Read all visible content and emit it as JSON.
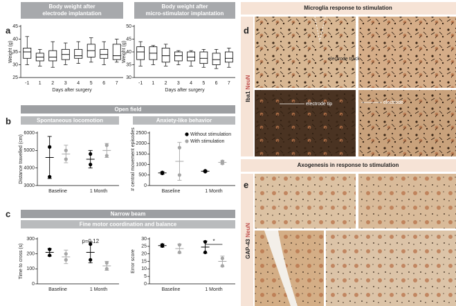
{
  "chart_data": [
    {
      "type": "box",
      "title": [
        "Body weight after",
        "electrode implantation"
      ],
      "ylabel": "Weight (g)",
      "xlabel": "Days after surgery",
      "categories": [
        "-1",
        "1",
        "2",
        "3",
        "4",
        "5",
        "6",
        "7"
      ],
      "ylim": [
        25,
        45
      ],
      "yticks": [
        25,
        30,
        35,
        40,
        45
      ],
      "stats": {
        "min": [
          30,
          29.5,
          29,
          30,
          30.5,
          31,
          30,
          31
        ],
        "q1": [
          32.5,
          31.5,
          31.5,
          32,
          32.5,
          33,
          32.5,
          32
        ],
        "median": [
          35,
          33,
          33,
          34,
          33.5,
          35.5,
          34,
          33.5
        ],
        "q3": [
          36.5,
          34.5,
          35.5,
          36,
          36,
          38,
          36,
          38
        ],
        "max": [
          41,
          36,
          39,
          38.5,
          39,
          40.5,
          39,
          40
        ]
      }
    },
    {
      "type": "box",
      "title": [
        "Body weight after",
        "micro-stimulator implantation"
      ],
      "ylabel": "Weight (g)",
      "xlabel": "Days after surgery",
      "categories": [
        "-1",
        "1",
        "2",
        "3",
        "4",
        "5",
        "6",
        "7"
      ],
      "ylim": [
        30,
        50
      ],
      "yticks": [
        30,
        35,
        40,
        45,
        50
      ],
      "stats": {
        "min": [
          34.5,
          35,
          34.5,
          35,
          34.5,
          34,
          33.5,
          34
        ],
        "q1": [
          37,
          37,
          36,
          36.5,
          36.5,
          35.5,
          35,
          36
        ],
        "median": [
          40,
          39.5,
          38.5,
          38.5,
          38,
          37.5,
          37,
          37.5
        ],
        "q3": [
          42,
          42,
          41.5,
          40,
          40,
          40,
          39.5,
          40
        ],
        "max": [
          44,
          42.5,
          43,
          40.5,
          40.5,
          41,
          41,
          41.5
        ]
      }
    },
    {
      "type": "dot",
      "title": "Spontaneous locomotion",
      "ylabel": "Distance travelled (cm)",
      "categories": [
        "Baseline",
        "1 Month"
      ],
      "ylim": [
        3000,
        6000
      ],
      "yticks": [
        3000,
        4000,
        5000,
        6000
      ],
      "series": [
        {
          "color": "#000000",
          "values": [
            4600,
            4500
          ],
          "errors": [
            1200,
            500
          ],
          "points": [
            [
              5200,
              3500
            ],
            [
              4800,
              4200
            ]
          ]
        },
        {
          "color": "#a6a6a6",
          "values": [
            4800,
            5000
          ],
          "errors": [
            500,
            400
          ],
          "points": [
            [
              5000,
              4500
            ],
            [
              5300,
              4700
            ]
          ]
        }
      ]
    },
    {
      "type": "dot",
      "title": "Anxiety-like behavior",
      "ylabel": "# central movement episodes",
      "categories": [
        "Baseline",
        "1 Month"
      ],
      "ylim": [
        0,
        2500
      ],
      "yticks": [
        0,
        500,
        1000,
        1500,
        2000,
        2500
      ],
      "legend": "upper right",
      "series": [
        {
          "name": "Without stimulation",
          "color": "#000000",
          "values": [
            600,
            680
          ],
          "errors": [
            60,
            40
          ],
          "points": [
            [
              620,
              580
            ],
            [
              700,
              660
            ]
          ]
        },
        {
          "name": "With stimulation",
          "color": "#a6a6a6",
          "values": [
            1150,
            1100
          ],
          "errors": [
            900,
            80
          ],
          "points": [
            [
              1800,
              500
            ],
            [
              1150,
              1050
            ]
          ]
        }
      ]
    },
    {
      "type": "dot",
      "ylabel": "Time to cross (s)",
      "categories": [
        "Baseline",
        "1 Month"
      ],
      "ylim": [
        0,
        300
      ],
      "yticks": [
        0,
        100,
        200,
        300
      ],
      "annotation": "p=0.12",
      "series": [
        {
          "color": "#000000",
          "values": [
            210,
            210
          ],
          "errors": [
            25,
            70
          ],
          "points": [
            [
              230,
              190
            ],
            [
              265,
              160
            ]
          ]
        },
        {
          "color": "#a6a6a6",
          "values": [
            180,
            120
          ],
          "errors": [
            45,
            30
          ],
          "points": [
            [
              200,
              160
            ],
            [
              140,
              100
            ]
          ]
        }
      ]
    },
    {
      "type": "dot",
      "ylabel": "Error score",
      "categories": [
        "Baseline",
        "1 Month"
      ],
      "ylim": [
        0,
        30
      ],
      "yticks": [
        0,
        5,
        10,
        15,
        20,
        25,
        30
      ],
      "annotation": "*",
      "series": [
        {
          "color": "#000000",
          "values": [
            25.5,
            24.5
          ],
          "errors": [
            1,
            4
          ],
          "points": [
            [
              26,
              25.2
            ],
            [
              28,
              21
            ]
          ]
        },
        {
          "color": "#a6a6a6",
          "values": [
            23.5,
            15
          ],
          "errors": [
            3,
            3.5
          ],
          "points": [
            [
              26,
              21
            ],
            [
              17,
              12
            ]
          ]
        }
      ]
    }
  ],
  "panel_labels": [
    "a",
    "b",
    "c",
    "d",
    "e"
  ],
  "sections": {
    "open_field": "Open field",
    "narrow_beam": "Narrow beam",
    "fine_motor": "Fine motor coordination and balance"
  },
  "micrographs": {
    "d": {
      "title": "Microglia response to stimulation",
      "stain": [
        "Iba1",
        "NeuN"
      ],
      "labels": [
        "electrode track",
        "electrode tip",
        "electrode"
      ]
    },
    "e": {
      "title": "Axogenesis in response to stimulation",
      "stain": [
        "GAP-43",
        "NeuN"
      ]
    }
  }
}
